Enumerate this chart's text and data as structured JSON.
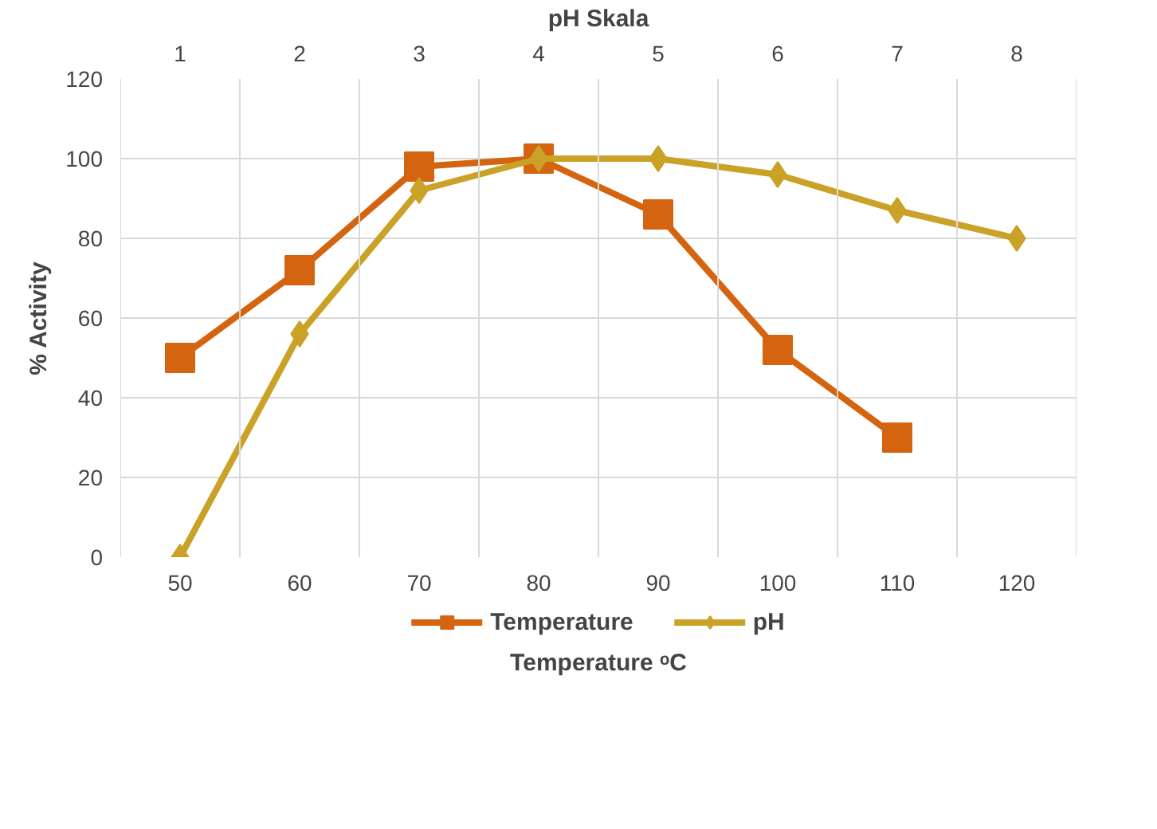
{
  "chart_data": {
    "type": "line",
    "xlabel": "Temperature ᵒC",
    "x2label": "pH Skala",
    "ylabel": "% Activity",
    "xlim": [
      45,
      125
    ],
    "xticks": [
      {
        "value": 45,
        "label": null
      },
      50,
      {
        "value": 55,
        "label": null
      },
      60,
      {
        "value": 65,
        "label": null
      },
      70,
      {
        "value": 75,
        "label": null
      },
      80,
      {
        "value": 85,
        "label": null
      },
      90,
      {
        "value": 95,
        "label": null
      },
      100,
      {
        "value": 105,
        "label": null
      },
      110,
      {
        "value": 115,
        "label": null
      },
      120,
      {
        "value": 125,
        "label": null
      }
    ],
    "x2lim": [
      0.5,
      8.5
    ],
    "x2ticks": [
      1,
      2,
      3,
      4,
      5,
      6,
      7,
      8
    ],
    "ylim": [
      0,
      120
    ],
    "yticks": [
      0,
      20,
      40,
      60,
      80,
      100,
      120
    ],
    "grid": true,
    "legend": "bottom",
    "series": [
      {
        "name": "Temperature",
        "color": "#d4640f",
        "marker": "square",
        "x": [
          50,
          60,
          70,
          80,
          90,
          100,
          110
        ],
        "values": [
          50,
          72,
          98,
          100,
          86,
          52,
          30
        ]
      },
      {
        "name": "pH",
        "color": "#c9a227",
        "marker": "diamond",
        "axis": "x2",
        "x": [
          1,
          2,
          3,
          4,
          5,
          6,
          7,
          8
        ],
        "values": [
          0,
          56,
          92,
          100,
          100,
          96,
          87,
          80
        ]
      }
    ]
  }
}
